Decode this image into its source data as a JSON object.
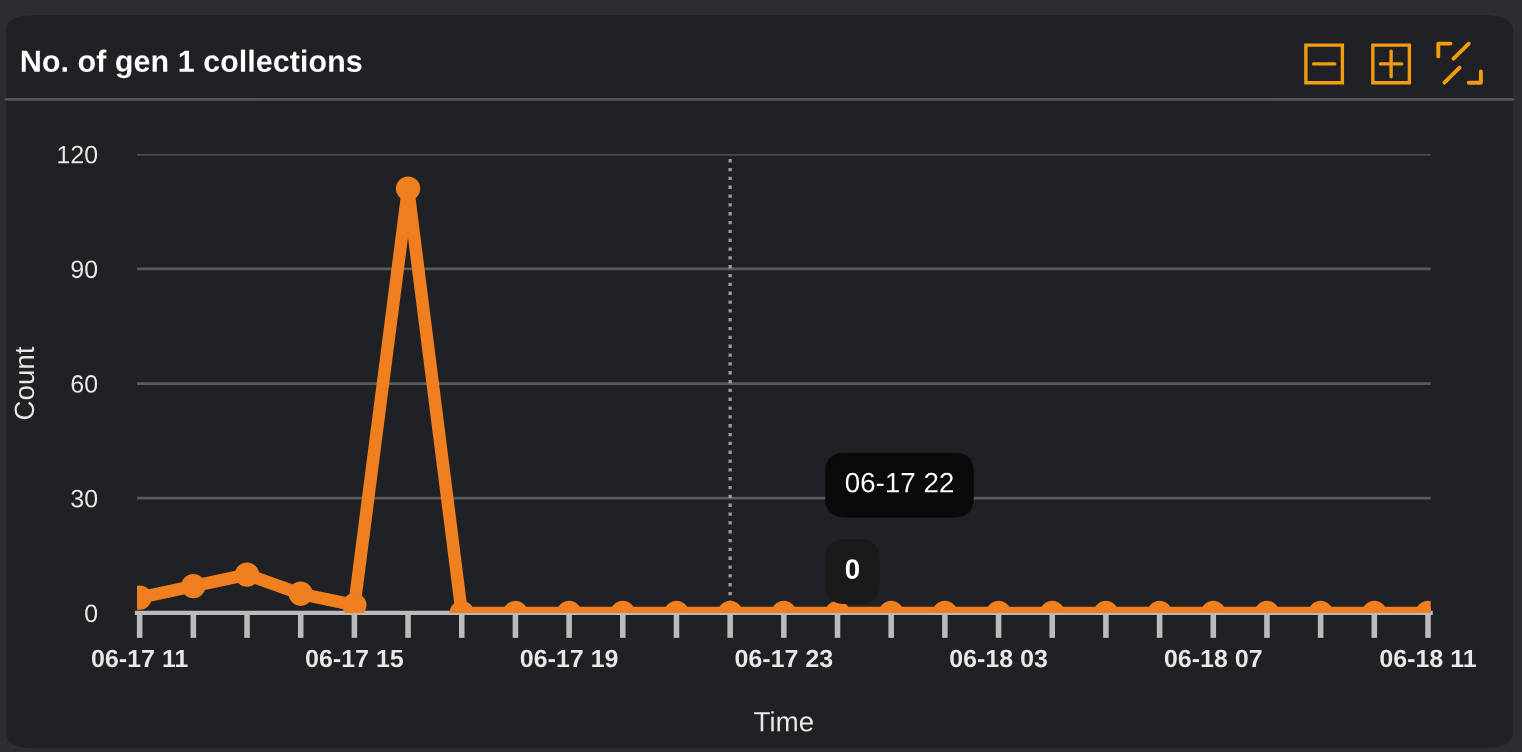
{
  "chart_data": {
    "type": "line",
    "title": "No. of gen 1 collections",
    "xlabel": "Time",
    "ylabel": "Count",
    "categories": [
      "06-17 11",
      null,
      null,
      null,
      "06-17 15",
      null,
      null,
      null,
      "06-17 19",
      null,
      null,
      null,
      "06-17 23",
      null,
      null,
      null,
      "06-18 03",
      null,
      null,
      null,
      "06-18 07",
      null,
      null,
      null,
      "06-18 11"
    ],
    "series": [
      {
        "color": "#f07f1f",
        "values": [
          4,
          7,
          10,
          5,
          2,
          111,
          0,
          0,
          0,
          0,
          0,
          0,
          0,
          0,
          0,
          0,
          0,
          0,
          0,
          0,
          0,
          0,
          0,
          0,
          0
        ]
      }
    ],
    "ylim": [
      0,
      120
    ],
    "yticks": [
      0,
      30,
      60,
      90,
      120
    ],
    "grid": "y",
    "marker": "circle",
    "line_style": "solid",
    "annotations": [
      "06-17 22",
      "0"
    ]
  }
}
